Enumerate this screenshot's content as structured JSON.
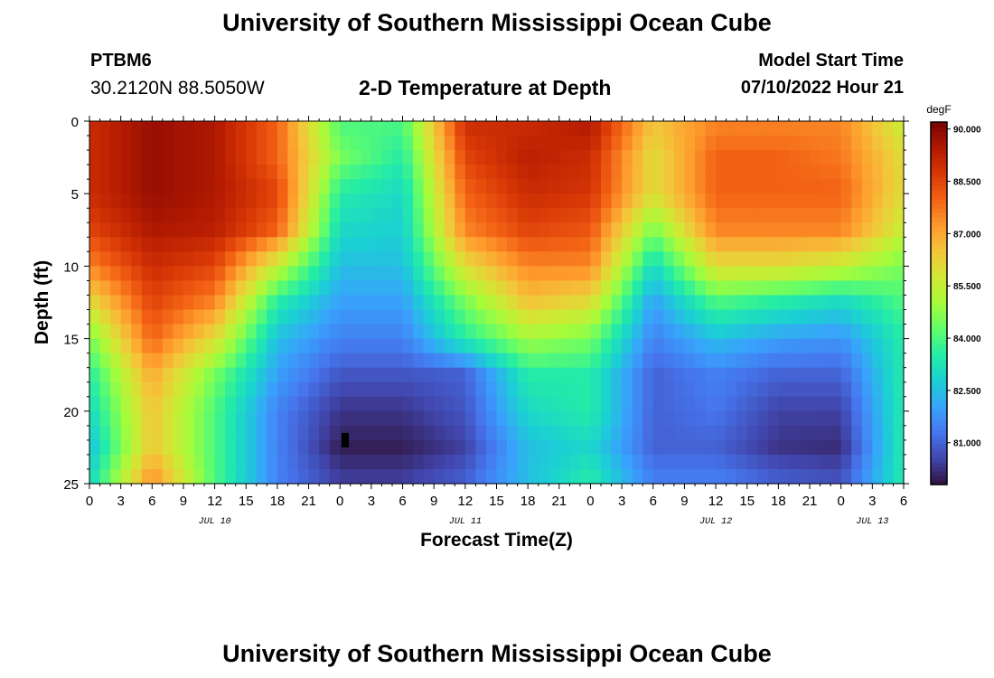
{
  "header": {
    "title": "University of Southern Mississippi Ocean Cube",
    "station": "PTBM6",
    "coords": "30.2120N  88.5050W",
    "subtitle": "2-D Temperature at Depth",
    "model_start_label": "Model Start Time",
    "model_start_value": "07/10/2022 Hour 21",
    "footer_title": "University of Southern Mississippi Ocean Cube"
  },
  "chart_data": {
    "type": "heatmap",
    "title": "2-D Temperature at Depth",
    "xlabel": "Forecast Time(Z)",
    "ylabel": "Depth (ft)",
    "colorbar_label": "degF",
    "ylim": [
      0,
      25
    ],
    "y_ticks": [
      0,
      5,
      10,
      15,
      20,
      25
    ],
    "x_range_hours": [
      0,
      78
    ],
    "x_tick_labels": [
      "0",
      "3",
      "6",
      "9",
      "12",
      "15",
      "18",
      "21",
      "0",
      "3",
      "6",
      "9",
      "12",
      "15",
      "18",
      "21",
      "0",
      "3",
      "6",
      "9",
      "12",
      "15",
      "18",
      "21",
      "0",
      "3",
      "6"
    ],
    "date_labels": [
      {
        "label": "JUL 10",
        "hour": 12
      },
      {
        "label": "JUL 11",
        "hour": 36
      },
      {
        "label": "JUL 12",
        "hour": 60
      },
      {
        "label": "JUL 13",
        "hour": 75
      }
    ],
    "colorbar_ticks": [
      81.0,
      82.5,
      84.0,
      85.5,
      87.0,
      88.5,
      90.0
    ],
    "colorbar_tick_labels": [
      "81.000",
      "82.500",
      "84.000",
      "85.500",
      "87.000",
      "88.500",
      "90.000"
    ],
    "value_range": [
      79.8,
      90.2
    ],
    "palette": [
      "#30123b",
      "#4145ab",
      "#4675ed",
      "#39a2fc",
      "#1bcfd4",
      "#24eca6",
      "#61fc6c",
      "#a4fc3b",
      "#d1e834",
      "#f3c63a",
      "#fe9b2d",
      "#f36315",
      "#d93806",
      "#b11901",
      "#7a0403"
    ],
    "depth_levels_ft": [
      0,
      2.5,
      5,
      7.5,
      10,
      12.5,
      15,
      17.5,
      20,
      22.5,
      25
    ],
    "time_hours": [
      0,
      6,
      12,
      18,
      24,
      30,
      36,
      42,
      48,
      54,
      60,
      66,
      72,
      78
    ],
    "temperature_degF": [
      [
        89.0,
        89.8,
        89.5,
        88.0,
        84.0,
        84.0,
        89.0,
        89.0,
        89.5,
        86.5,
        87.5,
        87.5,
        87.5,
        85.5
      ],
      [
        89.0,
        89.8,
        89.5,
        88.0,
        84.5,
        83.5,
        88.5,
        89.3,
        89.0,
        86.0,
        88.0,
        88.0,
        87.7,
        86.0
      ],
      [
        89.0,
        89.8,
        89.5,
        88.5,
        83.5,
        83.0,
        88.0,
        89.0,
        88.8,
        86.0,
        88.0,
        88.0,
        88.0,
        86.0
      ],
      [
        88.5,
        89.5,
        89.3,
        88.0,
        83.0,
        82.8,
        87.5,
        88.5,
        88.2,
        84.5,
        87.5,
        87.5,
        87.5,
        85.5
      ],
      [
        87.5,
        89.0,
        88.5,
        85.5,
        82.5,
        82.5,
        86.0,
        87.5,
        87.5,
        83.0,
        86.0,
        86.0,
        85.5,
        84.5
      ],
      [
        86.0,
        88.5,
        87.5,
        83.5,
        82.0,
        82.0,
        84.5,
        86.5,
        86.0,
        82.0,
        84.0,
        83.5,
        83.0,
        84.0
      ],
      [
        84.5,
        88.0,
        86.0,
        82.5,
        81.5,
        81.5,
        83.5,
        85.0,
        84.5,
        81.5,
        82.5,
        82.0,
        81.8,
        83.5
      ],
      [
        83.5,
        87.0,
        84.5,
        82.0,
        80.8,
        80.8,
        81.0,
        83.5,
        83.5,
        81.0,
        81.5,
        81.0,
        81.0,
        83.5
      ],
      [
        83.0,
        86.5,
        84.0,
        81.5,
        80.3,
        80.3,
        80.8,
        83.0,
        83.5,
        81.0,
        81.3,
        80.5,
        80.5,
        83.5
      ],
      [
        82.5,
        86.5,
        84.0,
        81.5,
        80.0,
        80.0,
        80.5,
        82.5,
        83.0,
        81.0,
        81.0,
        80.3,
        80.2,
        83.5
      ],
      [
        83.0,
        87.5,
        84.0,
        81.5,
        80.5,
        80.5,
        81.0,
        82.5,
        83.5,
        81.5,
        81.5,
        81.0,
        80.8,
        83.5
      ]
    ],
    "annotations": [
      {
        "type": "marker",
        "hour": 24.5,
        "depth_ft": 22,
        "color": "#000000"
      }
    ]
  }
}
